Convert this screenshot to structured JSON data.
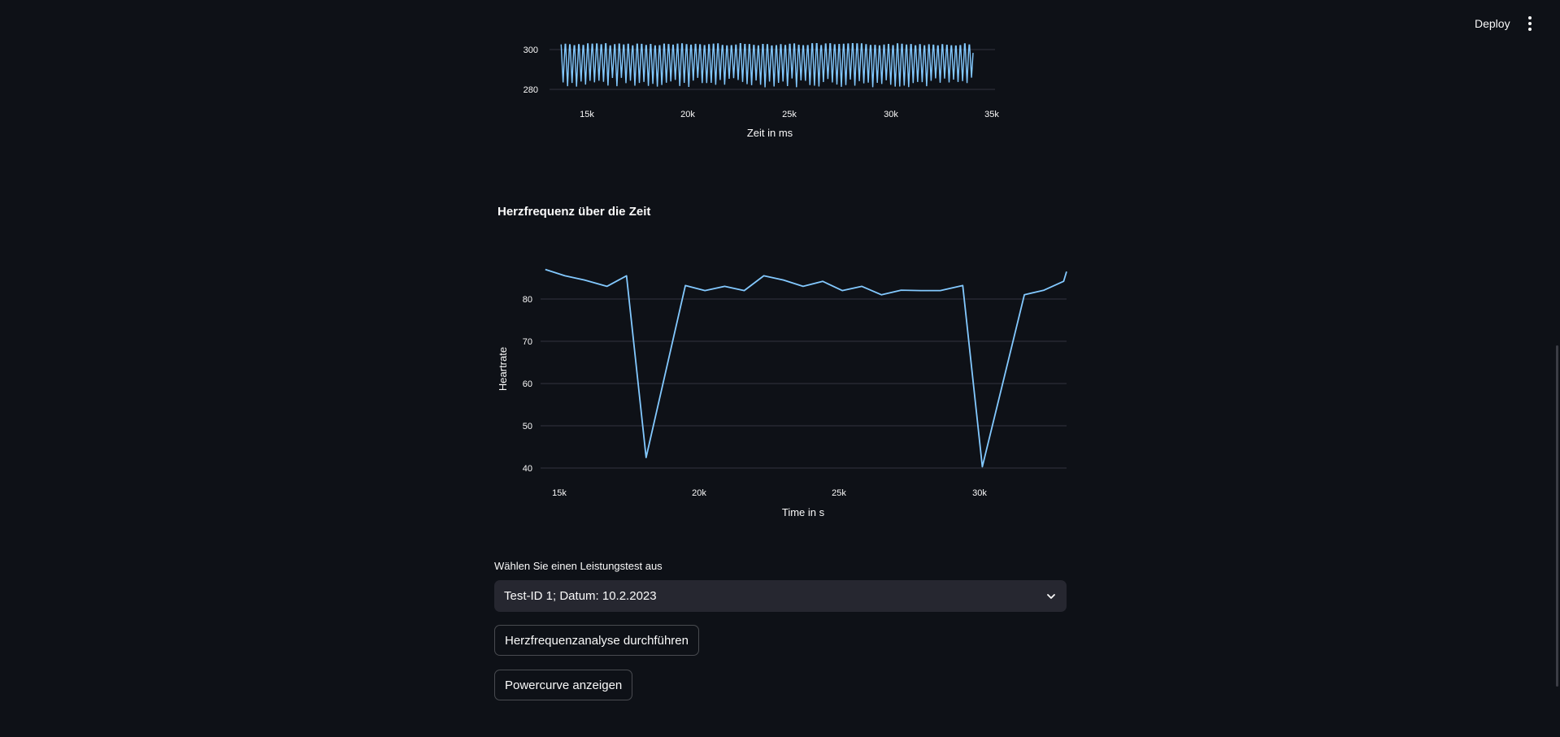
{
  "header": {
    "deploy_label": "Deploy",
    "menu_icon": "kebab-menu-icon"
  },
  "ecg_chart": {
    "xlabel": "Zeit in ms",
    "x_ticks": [
      "15k",
      "20k",
      "25k",
      "30k",
      "35k"
    ],
    "y_ticks": [
      "300",
      "280"
    ]
  },
  "hr_section": {
    "title": "Herzfrequenz über die Zeit"
  },
  "chart_data": [
    {
      "type": "line",
      "title": "",
      "xlabel": "Zeit in ms",
      "ylabel": "",
      "xlim": [
        12600,
        35200
      ],
      "ylim": [
        278,
        304
      ],
      "x_ticks": [
        15000,
        20000,
        25000,
        30000,
        35000
      ],
      "y_ticks": [
        280,
        300
      ],
      "grid": true,
      "series": [
        {
          "color": "#83c9ff",
          "x_range": [
            13700,
            34100
          ],
          "y_high": 303,
          "y_low_range": [
            281,
            286
          ],
          "approx_cycles": 92
        }
      ]
    },
    {
      "type": "line",
      "title": "",
      "xlabel": "Time in s",
      "ylabel": "Heartrate",
      "xlim": [
        14600,
        33800
      ],
      "ylim": [
        38,
        92
      ],
      "x_ticks": [
        15000,
        20000,
        25000,
        30000
      ],
      "y_ticks": [
        40,
        50,
        60,
        70,
        80
      ],
      "grid": true,
      "series": [
        {
          "color": "#83c9ff",
          "x": [
            14500,
            15200,
            15900,
            16700,
            17400,
            18100,
            19500,
            20200,
            20900,
            21600,
            22300,
            23000,
            23700,
            24400,
            25100,
            25800,
            26500,
            27200,
            27900,
            28600,
            29400,
            30100,
            31600,
            32300,
            33000,
            33800
          ],
          "y": [
            87.0,
            85.5,
            84.5,
            83.0,
            85.5,
            42.5,
            83.2,
            82.0,
            83.0,
            82.0,
            85.5,
            84.5,
            83.0,
            84.2,
            82.0,
            83.0,
            81.0,
            82.1,
            82.0,
            82.0,
            83.2,
            40.3,
            81.0,
            82.1,
            84.2,
            86.5
          ]
        }
      ]
    }
  ],
  "hr_chart": {
    "xlabel": "Time in s",
    "ylabel": "Heartrate",
    "x_ticks": [
      "15k",
      "20k",
      "25k",
      "30k"
    ],
    "y_ticks": [
      "80",
      "70",
      "60",
      "50",
      "40"
    ]
  },
  "test_select": {
    "label": "Wählen Sie einen Leistungstest aus",
    "value": "Test-ID 1; Datum: 10.2.2023",
    "icon": "chevron-down-icon"
  },
  "buttons": {
    "analyze_label": "Herzfrequenzanalyse durchführen",
    "powercurve_label": "Powercurve anzeigen"
  }
}
